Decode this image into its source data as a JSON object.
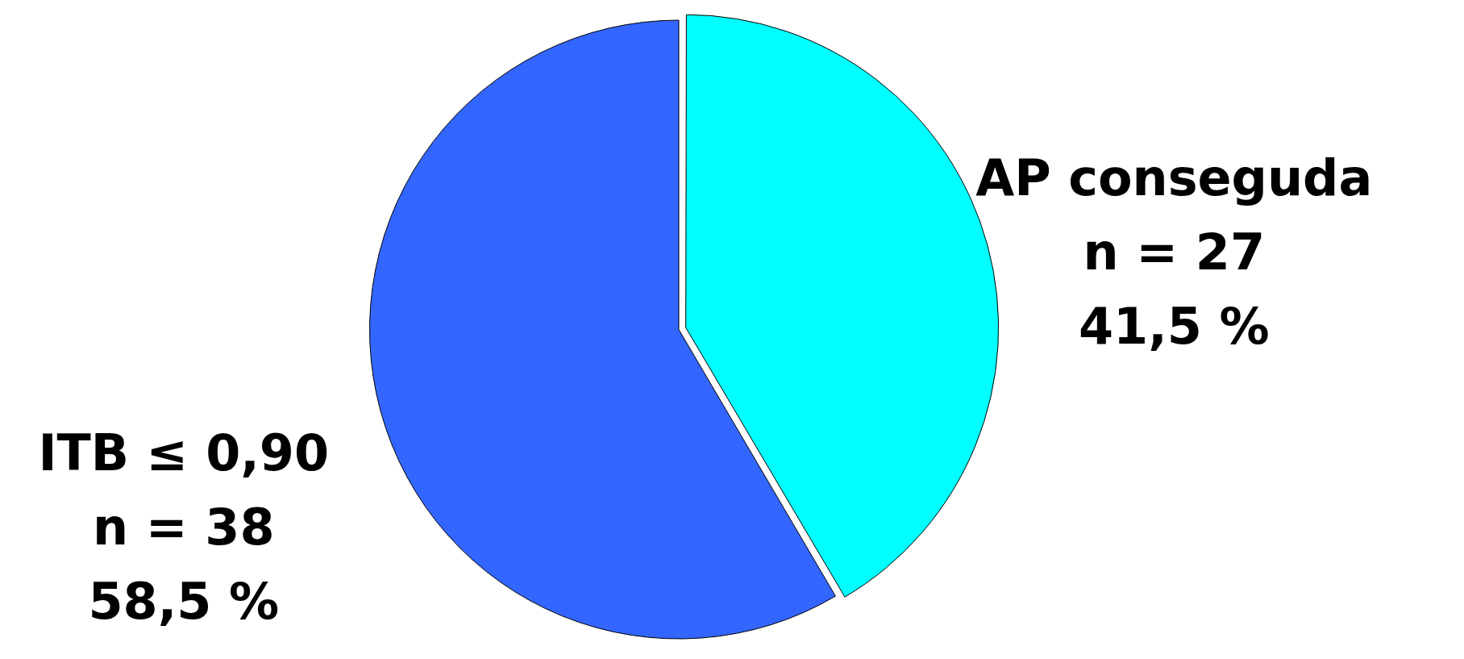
{
  "chart_data": {
    "type": "pie",
    "categories": [
      "AP conseguda",
      "ITB ≤ 0,90"
    ],
    "values": [
      27,
      38
    ],
    "colors": [
      "#00ffff",
      "#3366ff"
    ],
    "value_labels": [
      "n = 27",
      "n = 38"
    ],
    "annotations": [
      "41,5 %",
      "58,5 %"
    ],
    "legend": false
  }
}
